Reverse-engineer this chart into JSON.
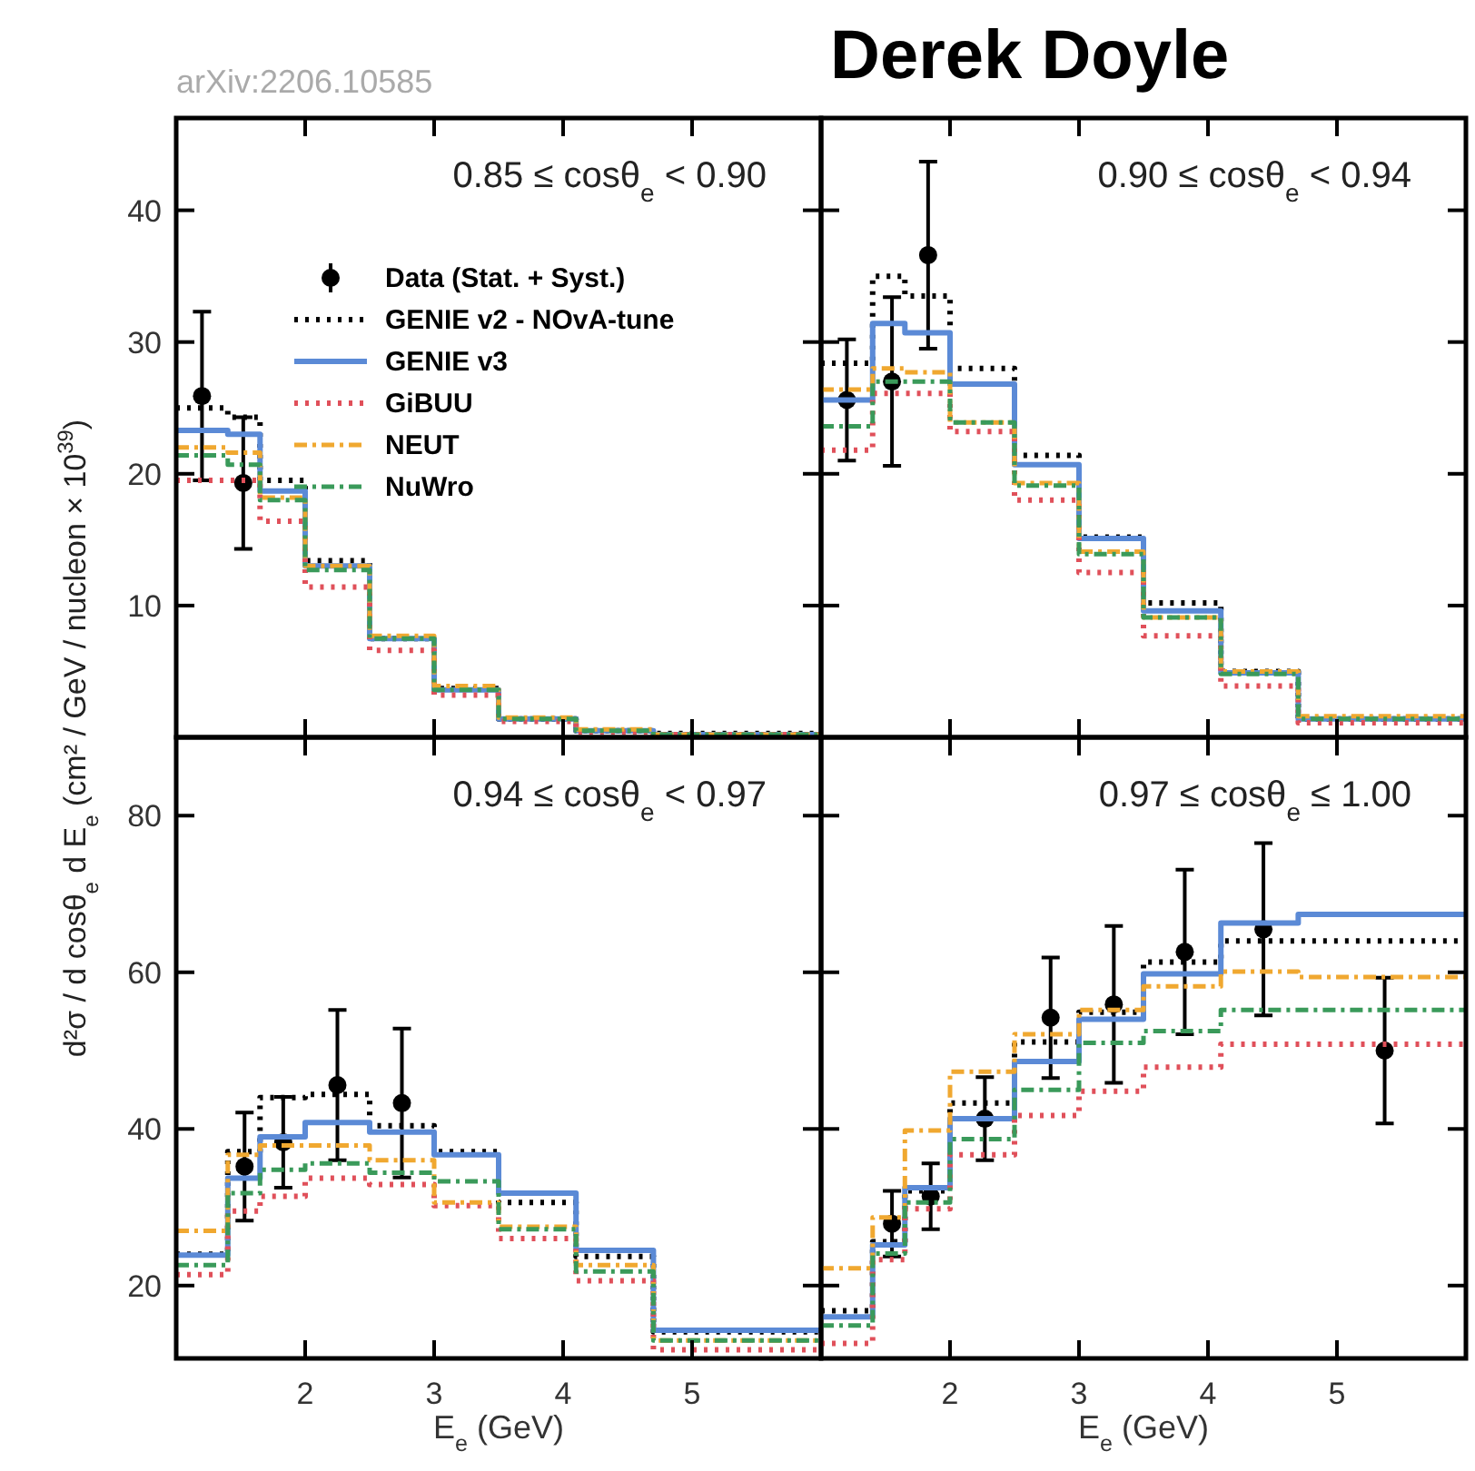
{
  "chart_data": [
    {
      "type": "step",
      "subtitle": "0.85 ≤ cosθ$_{e}$ < 0.90",
      "annotations": [
        "arXiv:2206.10585"
      ],
      "ylabel": "d²σ / d cosθ$_{e}$ d E$_{e}$ (cm² / GeV / nucleon × 10$^{39}$)",
      "xlim": [
        1,
        6
      ],
      "xticks": [
        2,
        3,
        4,
        5
      ],
      "ylim": [
        0,
        47
      ],
      "yticks": [
        10,
        20,
        30,
        40
      ],
      "tick_labels": "y",
      "legend": "right",
      "series": [
        {
          "name": "Data (Stat. + Syst.)",
          "type": "scatter",
          "marker": "circle",
          "color": "#000000",
          "x": [
            1.2,
            1.52
          ],
          "values": [
            25.9,
            19.3
          ],
          "errors": [
            6.4,
            5.0
          ]
        },
        {
          "name": "GENIE v2 - NOvA-tune",
          "color": "#000000",
          "line_style": "dotted",
          "x": [
            1,
            1.4,
            1.65,
            2,
            2.5,
            3,
            3.5,
            4.1,
            4.7,
            6
          ],
          "values": [
            25.0,
            24.3,
            19.5,
            13.4,
            7.5,
            3.7,
            1.4,
            0.5,
            0.3,
            0.3
          ]
        },
        {
          "name": "GENIE v3",
          "color": "#5b8ad6",
          "line_style": "solid",
          "x": [
            1,
            1.4,
            1.65,
            2,
            2.5,
            3,
            3.5,
            4.1,
            4.7,
            6
          ],
          "values": [
            23.3,
            23.0,
            18.7,
            13.0,
            7.5,
            3.6,
            1.4,
            0.5,
            0.2,
            0.2
          ]
        },
        {
          "name": "GiBUU",
          "color": "#e0505a",
          "line_style": "dotted",
          "x": [
            1,
            1.4,
            1.65,
            2,
            2.5,
            3,
            3.5,
            4.1,
            4.7,
            6
          ],
          "values": [
            19.5,
            19.5,
            16.4,
            11.4,
            6.6,
            3.2,
            1.2,
            0.4,
            0.2,
            0.2
          ]
        },
        {
          "name": "NEUT",
          "color": "#f0a830",
          "line_style": "dashdot",
          "x": [
            1,
            1.4,
            1.65,
            2,
            2.5,
            3,
            3.5,
            4.1,
            4.7,
            6
          ],
          "values": [
            22.0,
            21.6,
            18.2,
            13.0,
            7.7,
            3.9,
            1.5,
            0.6,
            0.2,
            0.2
          ]
        },
        {
          "name": "NuWro",
          "color": "#3a9a5a",
          "line_style": "dashdot",
          "x": [
            1,
            1.4,
            1.65,
            2,
            2.5,
            3,
            3.5,
            4.1,
            4.7,
            6
          ],
          "values": [
            21.4,
            20.7,
            18.0,
            12.7,
            7.5,
            3.6,
            1.4,
            0.5,
            0.2,
            0.2
          ]
        }
      ]
    },
    {
      "type": "step",
      "title": "Derek Doyle",
      "subtitle": "0.90 ≤ cosθ$_{e}$ < 0.94",
      "xlim": [
        1,
        6
      ],
      "xticks": [
        2,
        3,
        4,
        5
      ],
      "ylim": [
        0,
        47
      ],
      "yticks": [
        10,
        20,
        30,
        40
      ],
      "tick_labels": false,
      "series": [
        {
          "type": "scatter",
          "marker": "circle",
          "color": "#000000",
          "x": [
            1.2,
            1.55,
            1.83
          ],
          "values": [
            25.6,
            27.0,
            36.6
          ],
          "errors": [
            4.6,
            6.4,
            7.1
          ]
        },
        {
          "color": "#000000",
          "line_style": "dotted",
          "x": [
            1,
            1.4,
            1.65,
            2,
            2.5,
            3,
            3.5,
            4.1,
            4.7,
            6
          ],
          "values": [
            28.4,
            35.0,
            33.5,
            28.0,
            21.4,
            15.2,
            10.2,
            5.0,
            1.4,
            1.4
          ]
        },
        {
          "color": "#5b8ad6",
          "line_style": "solid",
          "x": [
            1,
            1.4,
            1.65,
            2,
            2.5,
            3,
            3.5,
            4.1,
            4.7,
            6
          ],
          "values": [
            25.6,
            31.4,
            30.7,
            26.8,
            20.7,
            15.1,
            9.6,
            4.9,
            1.4,
            1.4
          ]
        },
        {
          "color": "#e0505a",
          "line_style": "dotted",
          "x": [
            1,
            1.4,
            1.65,
            2,
            2.5,
            3,
            3.5,
            4.1,
            4.7,
            6
          ],
          "values": [
            21.8,
            26.1,
            26.1,
            23.2,
            18.0,
            12.5,
            7.7,
            3.9,
            1.1,
            1.1
          ]
        },
        {
          "color": "#f0a830",
          "line_style": "dashdot",
          "x": [
            1,
            1.4,
            1.65,
            2,
            2.5,
            3,
            3.5,
            4.1,
            4.7,
            6
          ],
          "values": [
            26.4,
            28.0,
            27.7,
            23.9,
            19.3,
            14.1,
            9.1,
            5.0,
            1.6,
            1.6
          ]
        },
        {
          "color": "#3a9a5a",
          "line_style": "dashdot",
          "x": [
            1,
            1.4,
            1.65,
            2,
            2.5,
            3,
            3.5,
            4.1,
            4.7,
            6
          ],
          "values": [
            23.6,
            27.0,
            27.0,
            23.9,
            19.1,
            13.9,
            9.1,
            4.8,
            1.4,
            1.4
          ]
        }
      ]
    },
    {
      "type": "step",
      "subtitle": "0.94 ≤ cosθ$_{e}$ < 0.97",
      "xlabel": "E$_{e}$ (GeV)",
      "xlim": [
        1,
        6
      ],
      "xticks": [
        2,
        3,
        4,
        5
      ],
      "ylim": [
        10.7,
        90
      ],
      "yticks": [
        20,
        40,
        60,
        80
      ],
      "series": [
        {
          "type": "scatter",
          "marker": "circle",
          "color": "#000000",
          "x": [
            1.53,
            1.83,
            2.25,
            2.75
          ],
          "values": [
            35.2,
            38.3,
            45.6,
            43.3
          ],
          "errors": [
            6.9,
            5.8,
            9.6,
            9.5
          ]
        },
        {
          "color": "#000000",
          "line_style": "dotted",
          "x": [
            1,
            1.4,
            1.65,
            2,
            2.5,
            3,
            3.5,
            4.1,
            4.7,
            6
          ],
          "values": [
            24.0,
            37.1,
            44.0,
            44.4,
            40.4,
            37.1,
            30.6,
            23.7,
            14.1,
            14.1
          ]
        },
        {
          "color": "#5b8ad6",
          "line_style": "solid",
          "x": [
            1,
            1.4,
            1.65,
            2,
            2.5,
            3,
            3.5,
            4.1,
            4.7,
            6
          ],
          "values": [
            23.9,
            33.7,
            39.0,
            40.8,
            39.6,
            36.7,
            31.8,
            24.5,
            14.3,
            14.3
          ]
        },
        {
          "color": "#e0505a",
          "line_style": "dotted",
          "x": [
            1,
            1.4,
            1.65,
            2,
            2.5,
            3,
            3.5,
            4.1,
            4.7,
            6
          ],
          "values": [
            21.4,
            29.5,
            31.4,
            33.7,
            32.9,
            30.2,
            26.0,
            20.6,
            11.8,
            11.8
          ]
        },
        {
          "color": "#f0a830",
          "line_style": "dashdot",
          "x": [
            1,
            1.4,
            1.65,
            2,
            2.5,
            3,
            3.5,
            4.1,
            4.7,
            6
          ],
          "values": [
            27.0,
            36.7,
            37.9,
            37.9,
            36.0,
            30.6,
            27.5,
            22.6,
            13.0,
            13.0
          ]
        },
        {
          "color": "#3a9a5a",
          "line_style": "dashdot",
          "x": [
            1,
            1.4,
            1.65,
            2,
            2.5,
            3,
            3.5,
            4.1,
            4.7,
            6
          ],
          "values": [
            22.6,
            31.8,
            34.8,
            35.6,
            34.4,
            33.3,
            27.2,
            21.8,
            13.0,
            13.0
          ]
        }
      ]
    },
    {
      "type": "step",
      "subtitle": "0.97 ≤ cosθ$_{e}$ ≤ 1.00",
      "xlabel": "E$_{e}$ (GeV)",
      "xlim": [
        1,
        6
      ],
      "xticks": [
        2,
        3,
        4,
        5
      ],
      "ylim": [
        10.7,
        90
      ],
      "yticks": [
        20,
        40,
        60,
        80
      ],
      "tick_labels": "x",
      "series": [
        {
          "type": "scatter",
          "marker": "circle",
          "color": "#000000",
          "x": [
            1.55,
            1.85,
            2.27,
            2.78,
            3.27,
            3.82,
            4.43,
            5.37
          ],
          "values": [
            27.9,
            31.4,
            41.3,
            54.2,
            55.9,
            62.6,
            65.5,
            50.0
          ],
          "errors": [
            4.2,
            4.2,
            5.3,
            7.7,
            10,
            10.5,
            11,
            9.3
          ]
        },
        {
          "color": "#000000",
          "line_style": "dotted",
          "x": [
            1,
            1.4,
            1.65,
            2,
            2.5,
            3,
            3.5,
            4.1,
            4.7,
            6
          ],
          "values": [
            16.8,
            25.6,
            32.1,
            43.3,
            51.1,
            54.9,
            61.3,
            64.0,
            64.0,
            64.0
          ]
        },
        {
          "color": "#5b8ad6",
          "line_style": "solid",
          "x": [
            1,
            1.4,
            1.65,
            2,
            2.5,
            3,
            3.5,
            4.1,
            4.7,
            6
          ],
          "values": [
            16.0,
            25.2,
            32.5,
            41.3,
            48.6,
            54.0,
            59.8,
            66.3,
            67.4,
            67.4
          ]
        },
        {
          "color": "#e0505a",
          "line_style": "dotted",
          "x": [
            1,
            1.4,
            1.65,
            2,
            2.5,
            3,
            3.5,
            4.1,
            4.7,
            6
          ],
          "values": [
            12.6,
            23.3,
            29.8,
            36.7,
            41.7,
            44.8,
            47.9,
            50.8,
            50.8,
            50.8
          ]
        },
        {
          "color": "#f0a830",
          "line_style": "dashdot",
          "x": [
            1,
            1.4,
            1.65,
            2,
            2.5,
            3,
            3.5,
            4.1,
            4.7,
            6
          ],
          "values": [
            22.2,
            28.7,
            39.8,
            47.3,
            52.1,
            55.2,
            58.2,
            60.1,
            59.4,
            59.4
          ]
        },
        {
          "color": "#3a9a5a",
          "line_style": "dashdot",
          "x": [
            1,
            1.4,
            1.65,
            2,
            2.5,
            3,
            3.5,
            4.1,
            4.7,
            6
          ],
          "values": [
            14.9,
            24.1,
            30.6,
            38.7,
            45.0,
            51.0,
            52.5,
            55.2,
            55.2,
            55.2
          ]
        }
      ]
    }
  ]
}
